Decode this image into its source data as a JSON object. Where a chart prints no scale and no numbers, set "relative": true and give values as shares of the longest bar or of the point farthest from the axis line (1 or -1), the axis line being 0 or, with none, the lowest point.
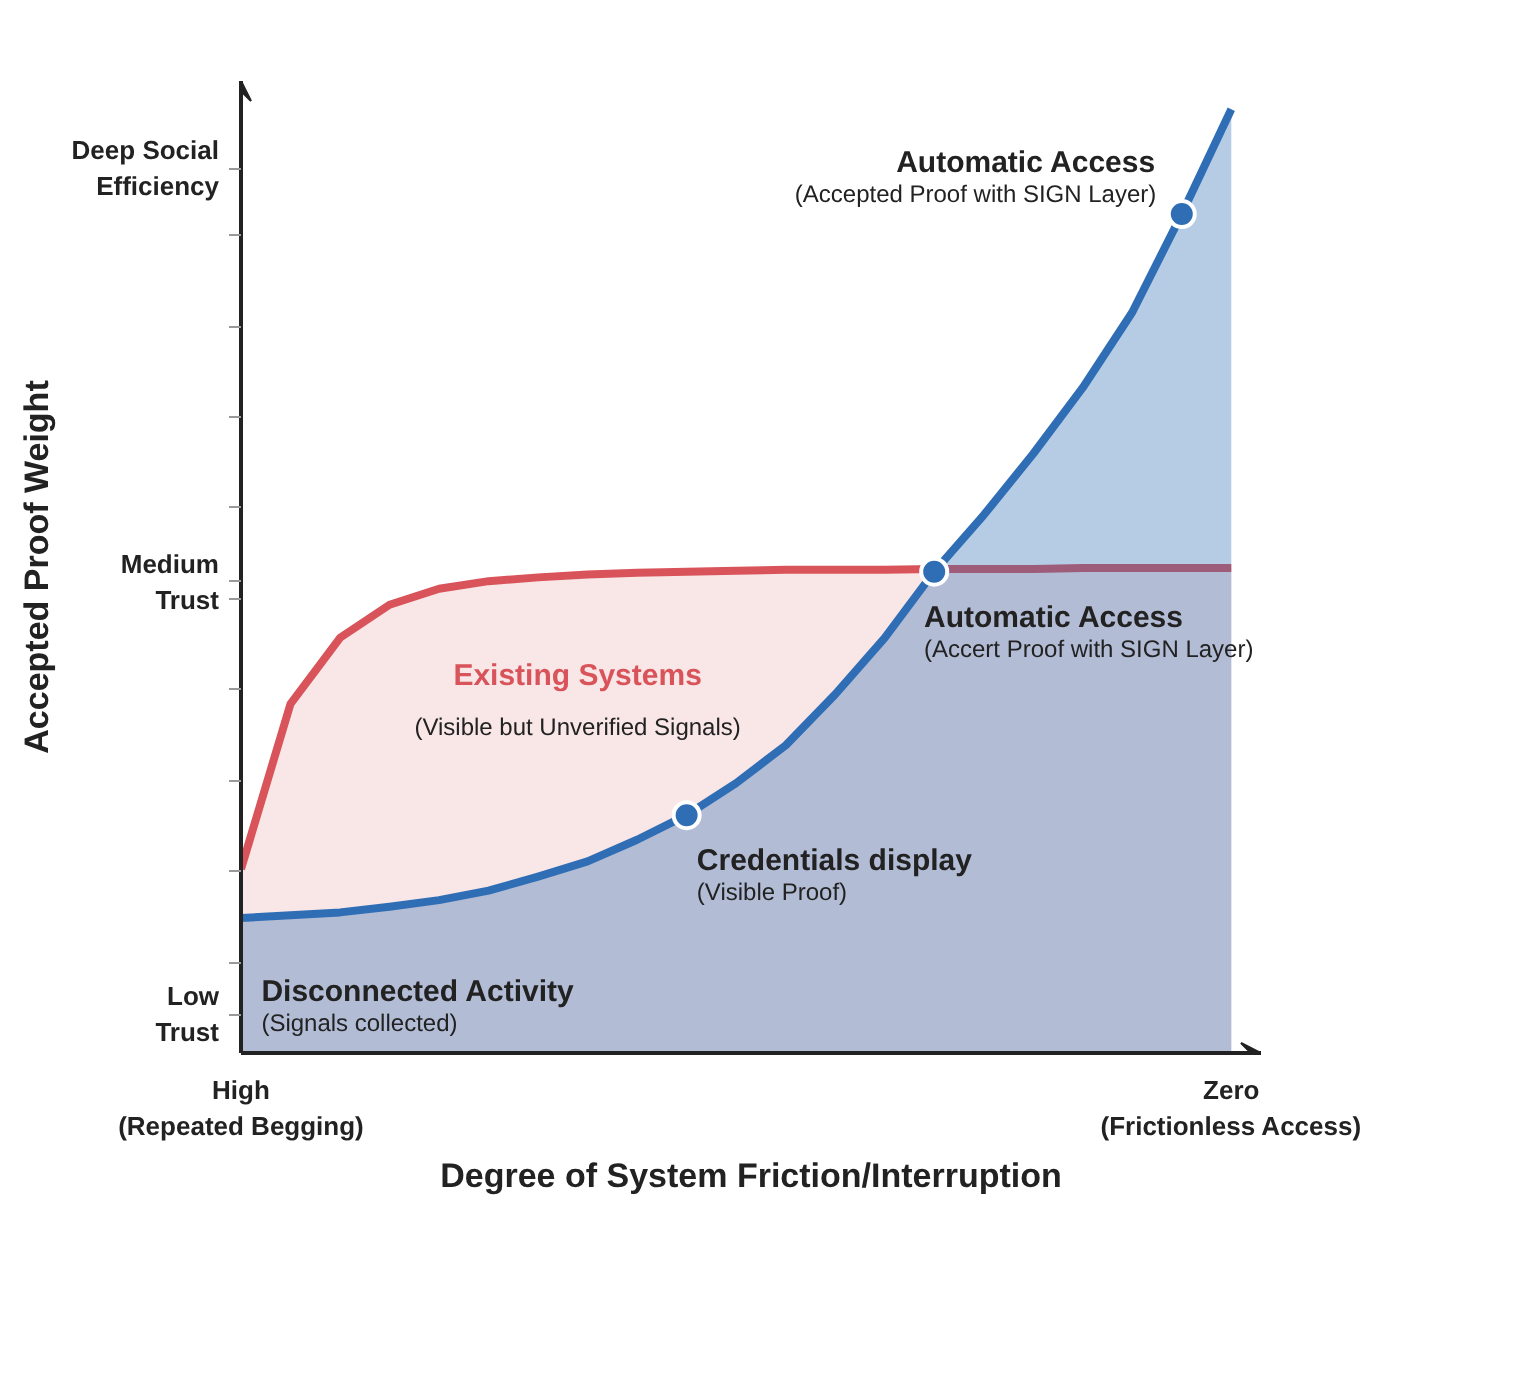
{
  "chart_data": {
    "type": "area",
    "relative": true,
    "xlabel": "Degree of System Friction/Interruption",
    "ylabel": "Accepted Proof Weight",
    "grid": false,
    "legend": false,
    "categories": [
      "High\n(Repeated Begging)",
      null,
      null,
      null,
      null,
      null,
      null,
      null,
      null,
      null,
      null,
      null,
      null,
      null,
      null,
      null,
      null,
      null,
      null,
      null,
      "Zero\n(Frictionless Access)"
    ],
    "series": [
      {
        "name": "Existing Systems",
        "color": "#d9545a",
        "values": [
          0.195,
          0.37,
          0.44,
          0.475,
          0.492,
          0.5,
          0.504,
          0.507,
          0.509,
          0.51,
          0.511,
          0.512,
          0.512,
          0.512,
          0.513,
          0.513,
          0.513,
          0.514,
          0.514,
          0.514,
          0.514
        ]
      },
      {
        "color": "#2f6db5",
        "values": [
          0.143,
          0.146,
          0.149,
          0.155,
          0.162,
          0.172,
          0.187,
          0.203,
          0.226,
          0.252,
          0.286,
          0.326,
          0.38,
          0.44,
          0.51,
          0.57,
          0.635,
          0.705,
          0.785,
          0.889,
          1
        ]
      },
      {
        "type": "scatter",
        "color": "#2f6db5",
        "values": [
          null,
          null,
          null,
          null,
          null,
          null,
          null,
          null,
          null,
          0.252,
          null,
          null,
          null,
          null,
          0.51,
          null,
          null,
          null,
          null,
          0.889,
          null
        ]
      }
    ],
    "annotations": [
      "Credentials display\n(Visible Proof)",
      "Automatic Access\n(Accert Proof with SIGN Layer)",
      "Automatic Access\n(Accepted Proof with SIGN Layer)",
      "(Visible but Unverified Signals)",
      "Disconnected Activity\n(Signals collected)",
      "Deep Social\nEfficiency",
      "Medium\nTrust",
      "Low\nTrust"
    ]
  }
}
